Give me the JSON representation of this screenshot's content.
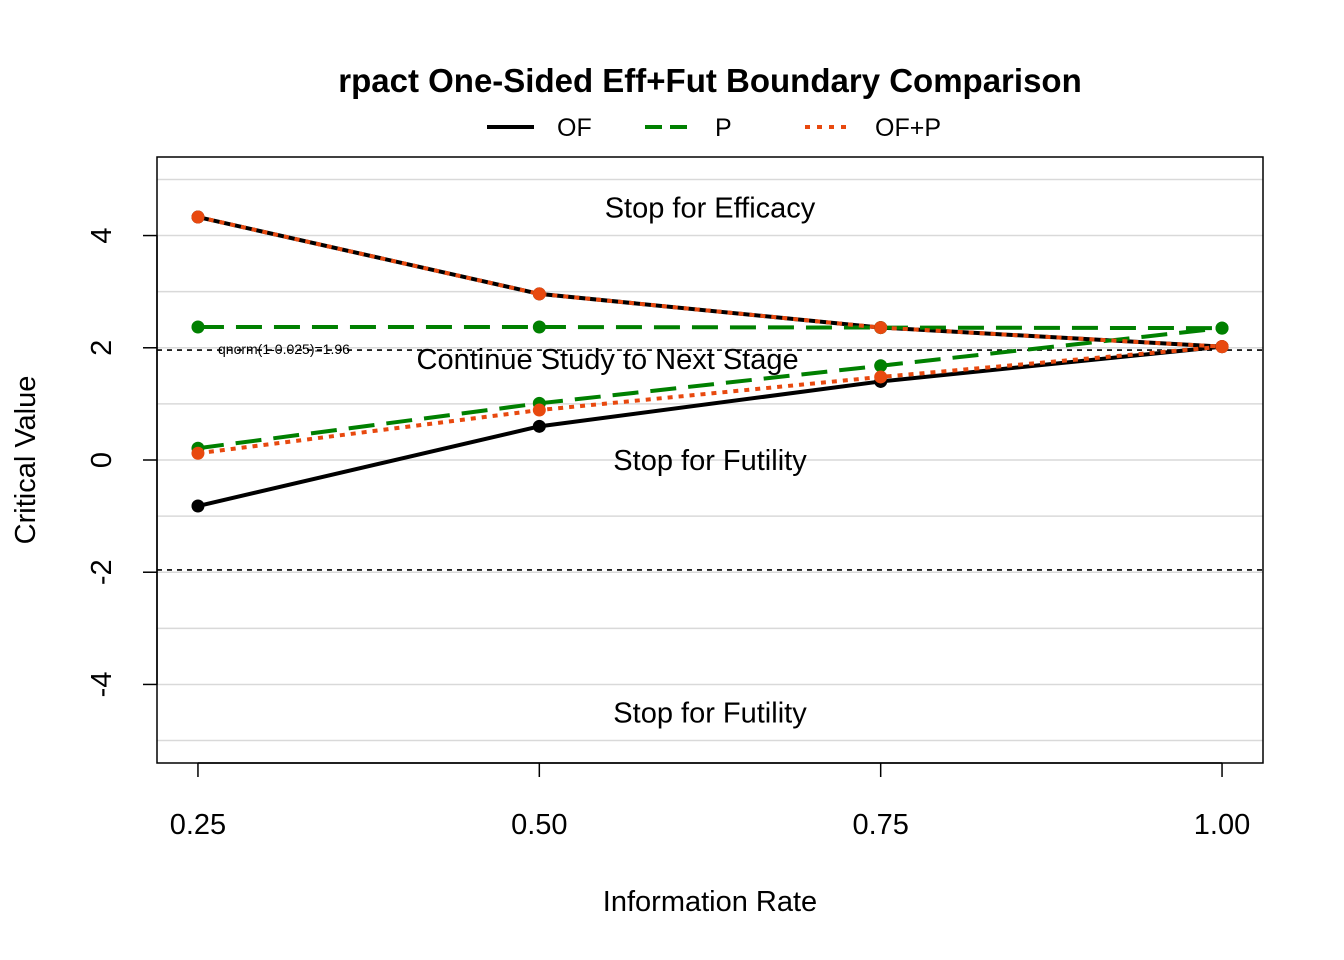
{
  "chart_data": {
    "type": "line",
    "title": "rpact One-Sided Eff+Fut Boundary Comparison",
    "xlabel": "Information Rate",
    "ylabel": "Critical Value",
    "x": [
      0.25,
      0.5,
      0.75,
      1.0
    ],
    "x_tick_labels": [
      "0.25",
      "0.50",
      "0.75",
      "1.00"
    ],
    "y_ticks": [
      -4,
      -2,
      0,
      2,
      4
    ],
    "y_tick_labels": [
      "-4",
      "-2",
      "0",
      "2",
      "4"
    ],
    "xlim": [
      0.22,
      1.03
    ],
    "ylim": [
      -5.4,
      5.4
    ],
    "grid": true,
    "grid_y": [
      -5,
      -4,
      -3,
      -2,
      -1,
      0,
      1,
      2,
      3,
      4,
      5
    ],
    "legend_position": "top",
    "series": [
      {
        "name": "OF",
        "color": "#000000",
        "dash": "solid",
        "efficacy": [
          4.33,
          2.96,
          2.36,
          2.02
        ],
        "futility": [
          -0.82,
          0.6,
          1.4,
          2.02
        ]
      },
      {
        "name": "P",
        "color": "#008000",
        "dash": "dashed",
        "efficacy": [
          2.37,
          2.37,
          2.36,
          2.35
        ],
        "futility": [
          0.21,
          1.01,
          1.68,
          2.35
        ]
      },
      {
        "name": "OF+P",
        "color": "#E8490F",
        "dash": "dotted",
        "efficacy": [
          4.33,
          2.96,
          2.36,
          2.02
        ],
        "futility": [
          0.12,
          0.89,
          1.48,
          2.02
        ]
      }
    ],
    "reference_lines": [
      {
        "y": 1.96,
        "label": "qnorm(1-0.025)=1.96"
      },
      {
        "y": -1.96,
        "label": ""
      }
    ],
    "annotations": [
      {
        "text": "Stop for Efficacy",
        "x": 0.625,
        "y": 4.5
      },
      {
        "text": "Continue Study to Next Stage",
        "x": 0.55,
        "y": 1.8
      },
      {
        "text": "Stop for Futility",
        "x": 0.625,
        "y": 0.0
      },
      {
        "text": "Stop for Futility",
        "x": 0.625,
        "y": -4.5
      }
    ]
  }
}
